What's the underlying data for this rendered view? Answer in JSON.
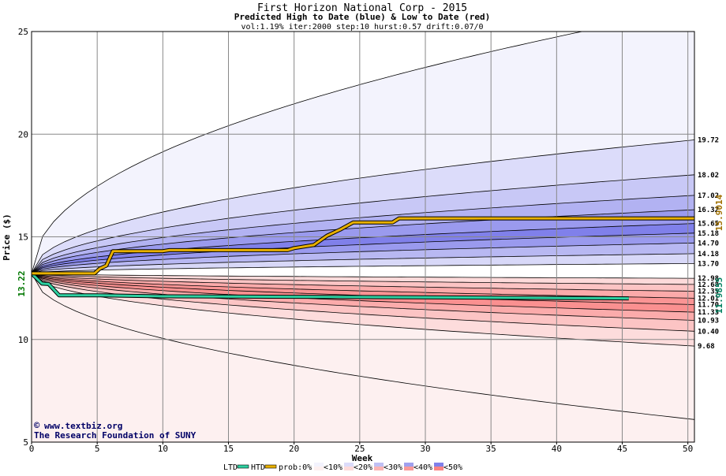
{
  "chart_data": {
    "type": "area",
    "title": "First Horizon National Corp - 2015",
    "subtitle": "Predicted High to Date (blue) &  Low to Date (red)",
    "params": "vol:1.19% iter:2000 step:10 hurst:0.57 drift:0.07/0",
    "xlabel": "Week",
    "ylabel": "Price ($)",
    "xlim": [
      0,
      50.5
    ],
    "ylim": [
      5,
      25
    ],
    "xticks": [
      "0",
      "5",
      "10",
      "15",
      "20",
      "25",
      "30",
      "35",
      "40",
      "45",
      "50"
    ],
    "yticks": [
      "5",
      "10",
      "15",
      "20",
      "25"
    ],
    "grid": true,
    "start_price_label": "13.22",
    "start_price": 13.22,
    "high_final_label": "15.9014",
    "low_final_label": "11.9855",
    "right_labels": [
      "19.72",
      "18.02",
      "17.02",
      "16.32",
      "15.65",
      "15.18",
      "14.70",
      "14.18",
      "13.70",
      "12.98",
      "12.68",
      "12.35",
      "12.01",
      "11.70",
      "11.33",
      "10.93",
      "10.40",
      "9.68"
    ],
    "high_bands": [
      19.72,
      18.02,
      17.02,
      16.32,
      15.65,
      15.18,
      14.7,
      14.18,
      13.7
    ],
    "low_bands": [
      12.98,
      12.68,
      12.35,
      12.01,
      11.7,
      11.33,
      10.93,
      10.4,
      9.68
    ],
    "outer_high_level": 26.1,
    "outer_low_level": 6.1,
    "htd_series": {
      "name": "HTD",
      "x": [
        0,
        4.8,
        5.2,
        5.7,
        6.2,
        10,
        10.5,
        19.5,
        20,
        21.5,
        22.5,
        23.5,
        24.5,
        27.5,
        28,
        50.5
      ],
      "y": [
        13.22,
        13.22,
        13.45,
        13.6,
        14.3,
        14.3,
        14.35,
        14.35,
        14.45,
        14.6,
        15.05,
        15.35,
        15.7,
        15.7,
        15.9,
        15.9
      ]
    },
    "ltd_series": {
      "name": "LTD",
      "x": [
        0,
        0.8,
        1.3,
        2.1,
        5,
        10,
        20,
        30,
        40,
        45.5
      ],
      "y": [
        13.22,
        12.72,
        12.7,
        12.15,
        12.15,
        12.1,
        12.08,
        12.05,
        12.02,
        12.0
      ]
    },
    "legend": {
      "items": [
        "LTD",
        "HTD",
        "prob:0%",
        "<10%",
        "<20%",
        "<30%",
        "<40%",
        "<50%"
      ],
      "position": "bottom"
    },
    "colors": {
      "htd": "#e8b000",
      "ltd": "#2ecfa0",
      "outer_high": "#f3f3fd",
      "outer_low": "#fdf0f0",
      "mid": "#ffffff",
      "high_fills": [
        "#dcdcfa",
        "#c8c8f6",
        "#b2b2f2",
        "#9a9aee",
        "#8080ea",
        "#9a9aee",
        "#b8b8f2",
        "#d8d8f8"
      ],
      "low_fills": [
        "#fddada",
        "#fcc4c4",
        "#fbaaaa",
        "#fa9494",
        "#fa9090",
        "#fbabab",
        "#fcc4c4",
        "#fddcdc"
      ],
      "start_label": "#007700",
      "htd_label": "#a07000",
      "ltd_label": "#008060",
      "credit": "#000066"
    }
  },
  "credits": {
    "site": "www.textbiz.org",
    "org": "The Research Foundation of SUNY"
  }
}
